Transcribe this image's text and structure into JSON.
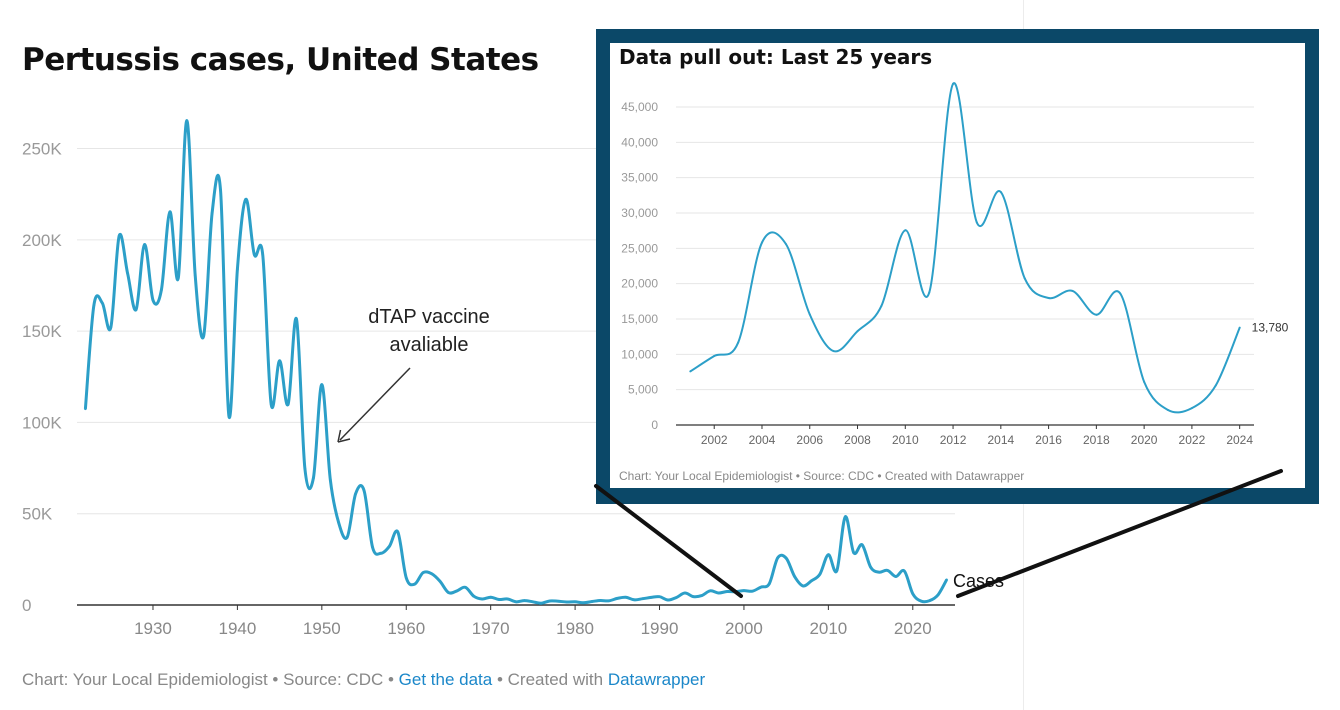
{
  "main_chart": {
    "title": "Pertussis cases, United States",
    "series_label": "Cases",
    "annotation": [
      "dTAP vaccine",
      "avaliable"
    ],
    "footer": {
      "chart": "Chart: Your Local Epidemiologist",
      "sep": " • ",
      "source": "Source: CDC",
      "get_data": "Get the data",
      "created": "Created with ",
      "tool": "Datawrapper"
    }
  },
  "inset_chart": {
    "title": "Data pull out: Last 25 years",
    "last_value_label": "13,780",
    "footer": "Chart: Your Local Epidemiologist • Source: CDC • Created with Datawrapper"
  },
  "colors": {
    "line": "#2c9fc8",
    "frame": "#0b4868",
    "grid": "#e6e6e6",
    "axis_text": "#888888",
    "link": "#1b87c9"
  },
  "chart_data": [
    {
      "type": "line",
      "title": "Pertussis cases, United States",
      "series": [
        {
          "name": "Cases",
          "x": [
            1922,
            1923,
            1924,
            1925,
            1926,
            1927,
            1928,
            1929,
            1930,
            1931,
            1932,
            1933,
            1934,
            1935,
            1936,
            1937,
            1938,
            1939,
            1940,
            1941,
            1942,
            1943,
            1944,
            1945,
            1946,
            1947,
            1948,
            1949,
            1950,
            1951,
            1952,
            1953,
            1954,
            1955,
            1956,
            1957,
            1958,
            1959,
            1960,
            1961,
            1962,
            1963,
            1964,
            1965,
            1966,
            1967,
            1968,
            1969,
            1970,
            1971,
            1972,
            1973,
            1974,
            1975,
            1976,
            1977,
            1978,
            1979,
            1980,
            1981,
            1982,
            1983,
            1984,
            1985,
            1986,
            1987,
            1988,
            1989,
            1990,
            1991,
            1992,
            1993,
            1994,
            1995,
            1996,
            1997,
            1998,
            1999,
            2000,
            2001,
            2002,
            2003,
            2004,
            2005,
            2006,
            2007,
            2008,
            2009,
            2010,
            2011,
            2012,
            2013,
            2014,
            2015,
            2016,
            2017,
            2018,
            2019,
            2020,
            2021,
            2022,
            2023,
            2024
          ],
          "values": [
            107473,
            164191,
            165418,
            152003,
            202210,
            181411,
            161799,
            197371,
            166914,
            172559,
            215343,
            179135,
            265269,
            180518,
            147237,
            214652,
            227319,
            103188,
            183866,
            222202,
            191890,
            191943,
            109873,
            133792,
            109860,
            156517,
            74715,
            69479,
            120718,
            68687,
            45030,
            37129,
            60886,
            62786,
            31732,
            28295,
            32148,
            40005,
            14809,
            11468,
            17749,
            17135,
            13005,
            6799,
            7717,
            9718,
            4810,
            3285,
            4249,
            3036,
            3287,
            1759,
            2402,
            1738,
            1010,
            2177,
            2063,
            1623,
            1730,
            1248,
            1895,
            2463,
            2276,
            3589,
            4195,
            2823,
            3450,
            4157,
            4570,
            2719,
            4083,
            6586,
            4617,
            5137,
            7796,
            6564,
            7405,
            7288,
            7867,
            7580,
            9771,
            11647,
            25827,
            25616,
            15632,
            10454,
            13278,
            16858,
            27550,
            18719,
            48277,
            28639,
            32971,
            20762,
            17972,
            18975,
            15609,
            18617,
            6124,
            2116,
            2388,
            5600,
            13780
          ]
        }
      ],
      "x_ticks": [
        1930,
        1940,
        1950,
        1960,
        1970,
        1980,
        1990,
        2000,
        2010,
        2020
      ],
      "y_ticks": [
        "0",
        "50K",
        "100K",
        "150K",
        "200K",
        "250K"
      ],
      "ylim": [
        0,
        270000
      ],
      "grid": "horizontal",
      "annotations": [
        {
          "text": "dTAP vaccine avaliable",
          "x": 1951
        }
      ]
    },
    {
      "type": "line",
      "title": "Data pull out: Last 25 years",
      "series": [
        {
          "name": "Cases",
          "x": [
            2001,
            2002,
            2003,
            2004,
            2005,
            2006,
            2007,
            2008,
            2009,
            2010,
            2011,
            2012,
            2013,
            2014,
            2015,
            2016,
            2017,
            2018,
            2019,
            2020,
            2021,
            2022,
            2023,
            2024
          ],
          "values": [
            7580,
            9771,
            11647,
            25827,
            25616,
            15632,
            10454,
            13278,
            16858,
            27550,
            18719,
            48277,
            28639,
            32971,
            20762,
            17972,
            18975,
            15609,
            18617,
            6124,
            2116,
            2388,
            5600,
            13780
          ]
        }
      ],
      "x_ticks": [
        2002,
        2004,
        2006,
        2008,
        2010,
        2012,
        2014,
        2016,
        2018,
        2020,
        2022,
        2024
      ],
      "y_ticks": [
        "0",
        "5,000",
        "10,000",
        "15,000",
        "20,000",
        "25,000",
        "30,000",
        "35,000",
        "40,000",
        "45,000"
      ],
      "ylim": [
        0,
        45000
      ],
      "grid": "horizontal",
      "end_label": "13,780"
    }
  ]
}
